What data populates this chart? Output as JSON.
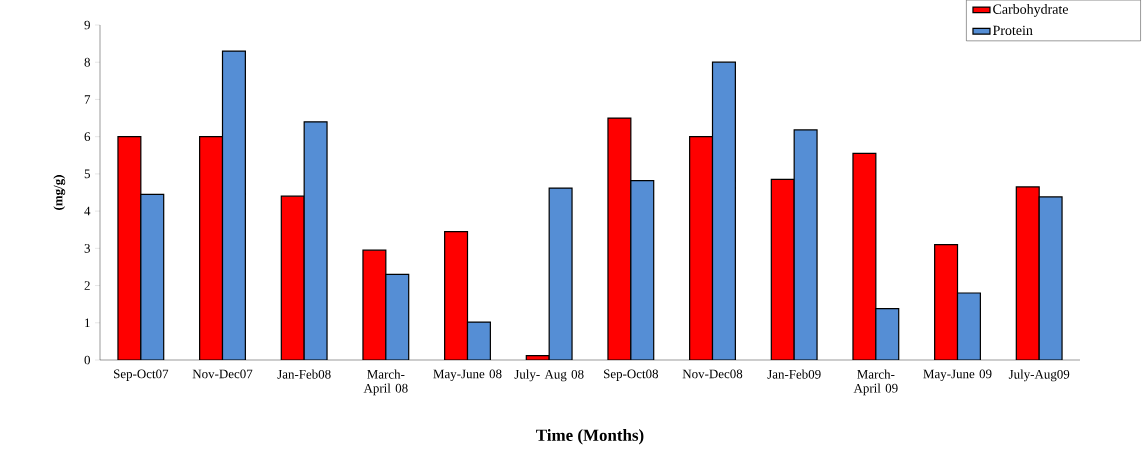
{
  "chart_data": {
    "type": "bar",
    "xlabel": "Time (Months)",
    "ylabel": "(mg/g)",
    "categories": [
      "Sep-Oct07",
      "Nov-Dec07",
      "Jan-Feb08",
      "March-April 08",
      "May-June 08",
      "July- Aug 08",
      "Sep-Oct08",
      "Nov-Dec08",
      "Jan-Feb09",
      "March-April 09",
      "May-June 09",
      "July-Aug09"
    ],
    "series": [
      {
        "name": "Carbohydrate",
        "color": "#ff0000",
        "values": [
          6.0,
          6.0,
          4.4,
          2.95,
          3.45,
          0.12,
          6.5,
          6.0,
          4.85,
          5.55,
          3.1,
          4.65
        ]
      },
      {
        "name": "Protein",
        "color": "#558ed5",
        "values": [
          4.45,
          8.3,
          6.4,
          2.3,
          1.02,
          4.62,
          4.82,
          8.0,
          6.18,
          1.38,
          1.8,
          4.38
        ]
      }
    ],
    "ylim": [
      0,
      9
    ],
    "yticks": [
      0,
      1,
      2,
      3,
      4,
      5,
      6,
      7,
      8,
      9
    ],
    "legend": "top right",
    "grid": false
  }
}
